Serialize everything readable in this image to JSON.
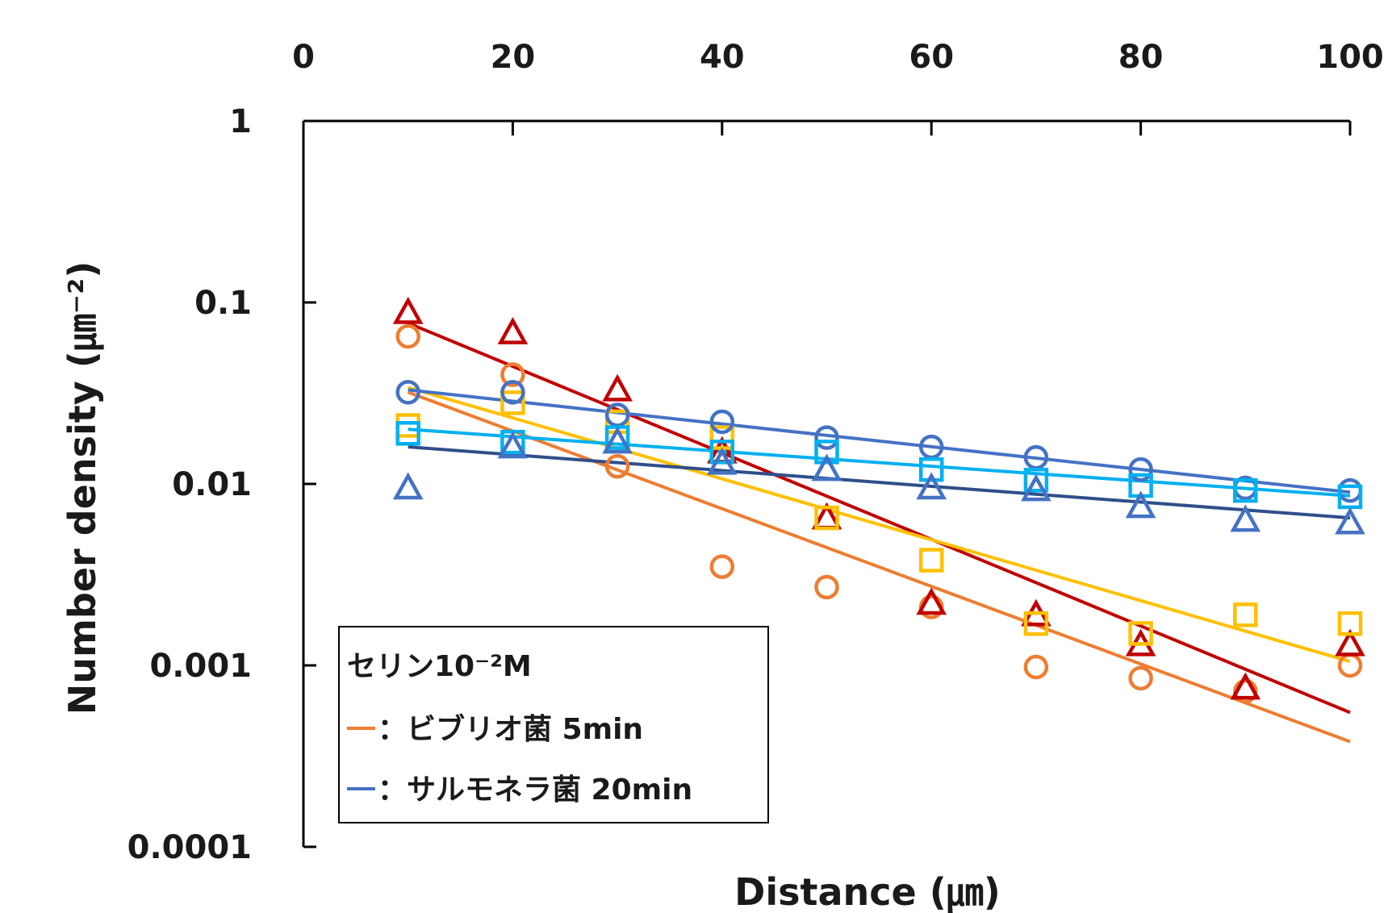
{
  "chart_data": {
    "type": "scatter",
    "xlabel": "Distance (㎛)",
    "ylabel": "Number density (㎛⁻²)",
    "x_axis_position": "top",
    "xlim": [
      0,
      100
    ],
    "xticks": [
      "0",
      "20",
      "40",
      "60",
      "80",
      "100"
    ],
    "y_scale": "log",
    "ylim": [
      0.0001,
      1
    ],
    "yticks": [
      "1",
      "0.1",
      "0.01",
      "0.001",
      "0.0001"
    ],
    "grid": false,
    "legend": {
      "placement": "bottom-left",
      "title": "セリン10⁻²M",
      "entries": [
        {
          "label": "：ビブリオ菌 5min",
          "color": "#ed7d31"
        },
        {
          "label": "：サルモネラ菌 20min",
          "color": "#4472c4"
        }
      ]
    },
    "series": [
      {
        "marker": "circle",
        "color": "#ed7d31",
        "x": [
          10,
          20,
          30,
          40,
          50,
          60,
          70,
          80,
          90,
          100
        ],
        "y": [
          0.065,
          0.04,
          0.0125,
          0.0035,
          0.0027,
          0.0021,
          0.00098,
          0.00085,
          0.00072,
          0.001
        ],
        "fit": {
          "x": [
            10,
            100
          ],
          "y": [
            0.032,
            0.00038
          ],
          "color": "#ed7d31"
        }
      },
      {
        "marker": "triangle",
        "color": "#c00000",
        "x": [
          10,
          20,
          30,
          40,
          50,
          60,
          70,
          80,
          90,
          100
        ],
        "y": [
          0.088,
          0.068,
          0.033,
          0.015,
          0.0065,
          0.0022,
          0.0019,
          0.0013,
          0.00075,
          0.0013
        ],
        "fit": {
          "x": [
            10,
            100
          ],
          "y": [
            0.077,
            0.00055
          ],
          "color": "#c00000"
        }
      },
      {
        "marker": "square",
        "color": "#ffc000",
        "x": [
          10,
          20,
          30,
          40,
          50,
          60,
          70,
          80,
          90,
          100
        ],
        "y": [
          0.021,
          0.028,
          0.022,
          0.018,
          0.0065,
          0.0038,
          0.0017,
          0.0015,
          0.0019,
          0.0017
        ],
        "fit": {
          "x": [
            10,
            100
          ],
          "y": [
            0.034,
            0.00105
          ],
          "color": "#ffc000"
        }
      },
      {
        "marker": "circle",
        "color": "#4472c4",
        "x": [
          10,
          20,
          30,
          40,
          50,
          60,
          70,
          80,
          90,
          100
        ],
        "y": [
          0.032,
          0.032,
          0.024,
          0.022,
          0.018,
          0.016,
          0.014,
          0.012,
          0.0095,
          0.0092
        ],
        "fit": {
          "x": [
            10,
            100
          ],
          "y": [
            0.033,
            0.009
          ],
          "color": "#4472c4"
        }
      },
      {
        "marker": "square",
        "color": "#00b0f0",
        "x": [
          10,
          20,
          30,
          40,
          50,
          60,
          70,
          80,
          90,
          100
        ],
        "y": [
          0.019,
          0.017,
          0.018,
          0.015,
          0.015,
          0.012,
          0.0105,
          0.0098,
          0.0092,
          0.0085
        ],
        "fit": {
          "x": [
            10,
            100
          ],
          "y": [
            0.02,
            0.0086
          ],
          "color": "#00b0f0"
        }
      },
      {
        "marker": "triangle",
        "color": "#4472c4",
        "x": [
          10,
          20,
          30,
          40,
          50,
          60,
          70,
          80,
          90,
          100
        ],
        "y": [
          0.0095,
          0.016,
          0.017,
          0.013,
          0.012,
          0.0095,
          0.0093,
          0.0075,
          0.0063,
          0.0061
        ],
        "fit": {
          "x": [
            10,
            100
          ],
          "y": [
            0.016,
            0.0065
          ],
          "color": "#2f4f8a"
        }
      }
    ]
  }
}
